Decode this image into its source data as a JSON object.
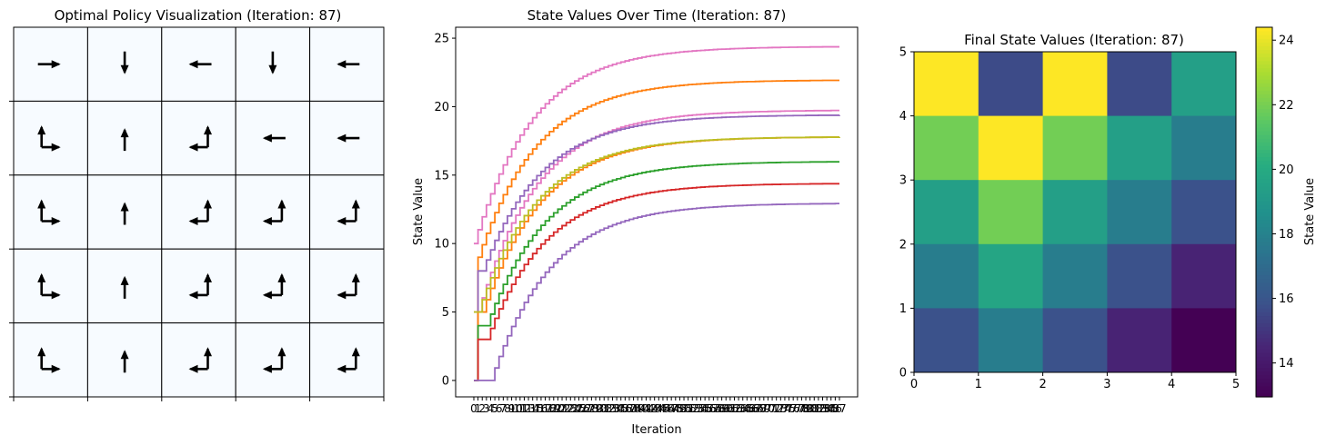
{
  "chart_data": [
    {
      "type": "grid-policy",
      "title": "Optimal Policy Visualization (Iteration: 87)",
      "rows": 5,
      "cols": 5,
      "cell_color": "#f7fbff",
      "arrow_color": "#000000",
      "policy": [
        [
          [
            "right"
          ],
          [
            "down"
          ],
          [
            "left"
          ],
          [
            "down"
          ],
          [
            "left"
          ]
        ],
        [
          [
            "up",
            "right"
          ],
          [
            "up"
          ],
          [
            "up",
            "left"
          ],
          [
            "left"
          ],
          [
            "left"
          ]
        ],
        [
          [
            "up",
            "right"
          ],
          [
            "up"
          ],
          [
            "up",
            "left"
          ],
          [
            "up",
            "left"
          ],
          [
            "up",
            "left"
          ]
        ],
        [
          [
            "up",
            "right"
          ],
          [
            "up"
          ],
          [
            "up",
            "left"
          ],
          [
            "up",
            "left"
          ],
          [
            "up",
            "left"
          ]
        ],
        [
          [
            "up",
            "right"
          ],
          [
            "up"
          ],
          [
            "up",
            "left"
          ],
          [
            "up",
            "left"
          ],
          [
            "up",
            "left"
          ]
        ]
      ]
    },
    {
      "type": "line",
      "title": "State Values Over Time (Iteration: 87)",
      "xlabel": "Iteration",
      "ylabel": "State Value",
      "xlim": [
        0,
        87
      ],
      "ylim": [
        -1.2,
        25.8
      ],
      "yticks": [
        0,
        5,
        10,
        15,
        20,
        25
      ],
      "xticks": [
        0,
        1,
        2,
        3,
        4,
        5,
        6,
        7,
        8,
        9,
        10,
        11,
        12,
        13,
        14,
        15,
        16,
        17,
        18,
        19,
        20,
        21,
        22,
        23,
        24,
        25,
        26,
        27,
        28,
        29,
        30,
        31,
        32,
        33,
        34,
        35,
        36,
        37,
        38,
        39,
        40,
        41,
        42,
        43,
        44,
        45,
        46,
        47,
        48,
        49,
        50,
        51,
        52,
        53,
        54,
        55,
        56,
        57,
        58,
        59,
        60,
        61,
        62,
        63,
        64,
        65,
        66,
        67,
        68,
        69,
        70,
        71,
        72,
        73,
        74,
        75,
        76,
        77,
        78,
        79,
        80,
        81,
        82,
        83,
        84,
        85,
        86,
        87
      ],
      "step": "post",
      "series": [
        {
          "color": "#e377c2",
          "start": 10,
          "first": 10,
          "final": 24.4,
          "delay": 0
        },
        {
          "color": "#ff7f0e",
          "start": 0,
          "first": 9,
          "final": 21.95,
          "delay": 1
        },
        {
          "color": "#e377c2",
          "start": 5,
          "first": 5,
          "final": 19.75,
          "delay": 1
        },
        {
          "color": "#9467bd",
          "start": 0,
          "first": 8,
          "final": 19.4,
          "delay": 2
        },
        {
          "color": "#ff7f0e",
          "start": 0,
          "first": 5,
          "final": 17.8,
          "delay": 2
        },
        {
          "color": "#bcbd22",
          "start": 5,
          "first": 5,
          "final": 17.8,
          "delay": 1
        },
        {
          "color": "#2ca02c",
          "start": 0,
          "first": 4,
          "final": 16.0,
          "delay": 3
        },
        {
          "color": "#d62728",
          "start": 0,
          "first": 3,
          "final": 14.4,
          "delay": 3
        },
        {
          "color": "#9467bd",
          "start": 0,
          "first": 0,
          "final": 12.95,
          "delay": 4
        }
      ]
    },
    {
      "type": "heatmap",
      "title": "Final State Values (Iteration: 87)",
      "colorbar_label": "State Value",
      "colorbar_ticks": [
        14,
        16,
        18,
        20,
        22,
        24
      ],
      "xticks": [
        0,
        1,
        2,
        3,
        4,
        5
      ],
      "yticks": [
        0,
        1,
        2,
        3,
        4,
        5
      ],
      "vmin": 12.95,
      "vmax": 24.4,
      "values": [
        [
          24.4,
          15.6,
          24.4,
          15.6,
          19.4
        ],
        [
          21.95,
          24.4,
          21.95,
          19.4,
          17.8
        ],
        [
          19.4,
          21.95,
          19.4,
          17.8,
          15.8
        ],
        [
          17.8,
          19.75,
          17.8,
          15.8,
          14.4
        ],
        [
          15.8,
          17.8,
          15.8,
          14.4,
          12.95
        ]
      ]
    }
  ]
}
